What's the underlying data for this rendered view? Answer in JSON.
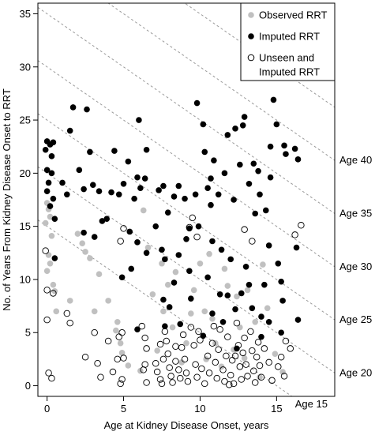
{
  "chart_data": {
    "type": "scatter",
    "xlabel": "Age at Kidney Disease Onset, years",
    "ylabel": "No. of Years From Kidney Disease Onset to RRT",
    "xlim": [
      -0.6,
      18.8
    ],
    "ylim": [
      -1.0,
      36.0
    ],
    "xticks": [
      0,
      5,
      10,
      15
    ],
    "yticks": [
      0,
      5,
      10,
      15,
      20,
      25,
      30,
      35
    ],
    "legend_position": "top-right",
    "series": [
      {
        "name": "Observed RRT",
        "marker": "filled-circle",
        "color": "#c0c0c0",
        "points": [
          [
            0.0,
            17.2
          ],
          [
            0.1,
            16.6
          ],
          [
            0.2,
            15.9
          ],
          [
            -0.1,
            15.3
          ],
          [
            0.3,
            14.1
          ],
          [
            0.1,
            12.3
          ],
          [
            0.2,
            11.5
          ],
          [
            0.0,
            10.8
          ],
          [
            0.4,
            9.5
          ],
          [
            0.5,
            8.9
          ],
          [
            2.0,
            14.3
          ],
          [
            2.3,
            13.4
          ],
          [
            2.5,
            12.6
          ],
          [
            2.8,
            12.0
          ],
          [
            1.5,
            8.0
          ],
          [
            0.6,
            7.0
          ],
          [
            3.1,
            7.0
          ],
          [
            4.0,
            8.0
          ],
          [
            4.6,
            6.0
          ],
          [
            4.8,
            4.0
          ],
          [
            4.9,
            3.1
          ],
          [
            5.3,
            1.9
          ],
          [
            6.3,
            16.5
          ],
          [
            6.6,
            13.0
          ],
          [
            7.5,
            11.5
          ],
          [
            7.9,
            9.5
          ],
          [
            7.6,
            7.0
          ],
          [
            8.2,
            5.5
          ],
          [
            9.1,
            4.0
          ],
          [
            8.8,
            2.2
          ],
          [
            9.6,
            9.0
          ],
          [
            10.0,
            11.5
          ],
          [
            10.3,
            7.0
          ],
          [
            10.8,
            6.3
          ],
          [
            11.0,
            4.0
          ],
          [
            10.4,
            2.5
          ],
          [
            11.6,
            11.0
          ],
          [
            11.8,
            9.4
          ],
          [
            12.4,
            8.4
          ],
          [
            12.6,
            5.5
          ],
          [
            13.6,
            6.0
          ],
          [
            14.4,
            7.3
          ],
          [
            15.4,
            1.3
          ],
          [
            14.9,
            3.0
          ],
          [
            10.6,
            12.4
          ],
          [
            6.1,
            1.4
          ],
          [
            8.4,
            10.7
          ],
          [
            12.9,
            2.6
          ],
          [
            14.1,
            11.4
          ],
          [
            9.4,
            6.8
          ],
          [
            12.2,
            3.4
          ],
          [
            11.4,
            1.8
          ],
          [
            13.1,
            9.0
          ],
          [
            3.4,
            10.5
          ],
          [
            4.5,
            5.2
          ],
          [
            7.2,
            3.3
          ],
          [
            13.9,
            0.8
          ],
          [
            6.9,
            8.6
          ]
        ]
      },
      {
        "name": "Imputed RRT",
        "marker": "filled-circle",
        "color": "#000000",
        "points": [
          [
            0.0,
            23.0
          ],
          [
            0.2,
            22.7
          ],
          [
            -0.1,
            22.2
          ],
          [
            0.3,
            21.6
          ],
          [
            0.0,
            20.3
          ],
          [
            0.3,
            20.0
          ],
          [
            0.1,
            19.1
          ],
          [
            0.0,
            18.3
          ],
          [
            0.4,
            17.6
          ],
          [
            0.2,
            16.9
          ],
          [
            0.5,
            15.7
          ],
          [
            1.0,
            19.1
          ],
          [
            1.3,
            18.0
          ],
          [
            1.5,
            24.0
          ],
          [
            1.7,
            26.2
          ],
          [
            2.1,
            20.3
          ],
          [
            2.4,
            18.5
          ],
          [
            2.6,
            26.0
          ],
          [
            2.8,
            22.0
          ],
          [
            3.0,
            18.9
          ],
          [
            2.4,
            14.4
          ],
          [
            3.1,
            14.0
          ],
          [
            3.4,
            18.3
          ],
          [
            3.6,
            15.5
          ],
          [
            3.9,
            15.7
          ],
          [
            4.2,
            18.2
          ],
          [
            4.4,
            22.1
          ],
          [
            4.7,
            18.0
          ],
          [
            5.0,
            19.0
          ],
          [
            5.3,
            21.1
          ],
          [
            5.4,
            14.5
          ],
          [
            5.7,
            17.6
          ],
          [
            5.9,
            19.6
          ],
          [
            6.0,
            25.0
          ],
          [
            6.1,
            18.6
          ],
          [
            6.4,
            19.5
          ],
          [
            6.5,
            22.2
          ],
          [
            7.3,
            18.4
          ],
          [
            7.6,
            18.8
          ],
          [
            7.9,
            16.3
          ],
          [
            8.3,
            17.8
          ],
          [
            8.6,
            18.8
          ],
          [
            7.1,
            15.0
          ],
          [
            7.5,
            12.8
          ],
          [
            7.6,
            8.1
          ],
          [
            8.6,
            12.3
          ],
          [
            8.3,
            9.7
          ],
          [
            9.1,
            13.8
          ],
          [
            9.3,
            14.8
          ],
          [
            9.0,
            17.6
          ],
          [
            9.7,
            18.0
          ],
          [
            9.8,
            26.6
          ],
          [
            10.2,
            24.6
          ],
          [
            10.3,
            22.0
          ],
          [
            10.7,
            19.5
          ],
          [
            10.9,
            21.2
          ],
          [
            10.5,
            18.6
          ],
          [
            10.7,
            17.0
          ],
          [
            10.8,
            13.6
          ],
          [
            9.9,
            15.0
          ],
          [
            11.2,
            18.0
          ],
          [
            11.4,
            12.8
          ],
          [
            11.6,
            20.0
          ],
          [
            11.8,
            23.6
          ],
          [
            12.2,
            17.5
          ],
          [
            12.3,
            24.2
          ],
          [
            12.8,
            24.5
          ],
          [
            12.9,
            25.3
          ],
          [
            12.6,
            20.8
          ],
          [
            13.2,
            19.0
          ],
          [
            13.5,
            20.9
          ],
          [
            13.8,
            20.2
          ],
          [
            13.6,
            16.2
          ],
          [
            13.9,
            18.0
          ],
          [
            14.3,
            16.5
          ],
          [
            14.6,
            22.5
          ],
          [
            14.8,
            26.9
          ],
          [
            15.0,
            24.6
          ],
          [
            14.6,
            19.6
          ],
          [
            15.5,
            22.6
          ],
          [
            15.6,
            21.8
          ],
          [
            16.2,
            22.3
          ],
          [
            16.4,
            21.3
          ],
          [
            14.5,
            13.2
          ],
          [
            15.1,
            11.5
          ],
          [
            16.3,
            13.0
          ],
          [
            15.3,
            9.8
          ],
          [
            16.4,
            6.2
          ],
          [
            15.4,
            8.0
          ],
          [
            14.2,
            9.5
          ],
          [
            12.0,
            11.9
          ],
          [
            11.8,
            8.5
          ],
          [
            10.5,
            10.2
          ],
          [
            9.3,
            10.8
          ],
          [
            7.7,
            11.9
          ],
          [
            6.5,
            12.5
          ],
          [
            5.5,
            11.0
          ],
          [
            4.9,
            10.2
          ],
          [
            0.5,
            12.0
          ],
          [
            0.4,
            22.9
          ],
          [
            5.9,
            13.5
          ],
          [
            8.0,
            7.4
          ],
          [
            9.4,
            8.2
          ],
          [
            10.8,
            6.8
          ],
          [
            11.3,
            8.6
          ],
          [
            12.7,
            8.7
          ],
          [
            13.2,
            9.5
          ],
          [
            13.0,
            11.2
          ],
          [
            14.0,
            6.5
          ],
          [
            13.4,
            7.3
          ],
          [
            12.4,
            3.5
          ],
          [
            14.0,
            4.6
          ],
          [
            8.7,
            5.8
          ],
          [
            7.7,
            5.6
          ],
          [
            10.2,
            4.7
          ],
          [
            11.5,
            6.0
          ],
          [
            12.3,
            7.2
          ],
          [
            14.5,
            6.0
          ],
          [
            15.3,
            5.0
          ],
          [
            5.9,
            5.3
          ]
        ]
      },
      {
        "name": "Unseen and Imputed RRT",
        "marker": "open-circle",
        "color": "#000000",
        "points": [
          [
            -0.1,
            12.7
          ],
          [
            0.0,
            9.0
          ],
          [
            0.4,
            8.7
          ],
          [
            0.0,
            6.2
          ],
          [
            0.1,
            1.2
          ],
          [
            0.3,
            0.7
          ],
          [
            1.3,
            6.8
          ],
          [
            1.5,
            5.9
          ],
          [
            2.5,
            2.7
          ],
          [
            3.1,
            5.0
          ],
          [
            3.3,
            2.1
          ],
          [
            3.5,
            0.8
          ],
          [
            4.0,
            4.2
          ],
          [
            4.3,
            1.3
          ],
          [
            4.6,
            2.5
          ],
          [
            4.7,
            4.6
          ],
          [
            4.9,
            5.0
          ],
          [
            5.0,
            2.6
          ],
          [
            4.9,
            0.6
          ],
          [
            4.8,
            0.2
          ],
          [
            4.8,
            13.6
          ],
          [
            5.0,
            14.8
          ],
          [
            6.2,
            5.6
          ],
          [
            6.4,
            4.5
          ],
          [
            6.5,
            3.5
          ],
          [
            6.4,
            2.0
          ],
          [
            6.3,
            1.5
          ],
          [
            6.5,
            0.3
          ],
          [
            7.1,
            2.1
          ],
          [
            7.2,
            1.3
          ],
          [
            7.4,
            0.6
          ],
          [
            7.5,
            0.2
          ],
          [
            7.6,
            2.5
          ],
          [
            7.7,
            5.1
          ],
          [
            7.8,
            4.2
          ],
          [
            7.9,
            3.0
          ],
          [
            8.0,
            1.7
          ],
          [
            8.1,
            0.9
          ],
          [
            8.2,
            0.3
          ],
          [
            8.4,
            2.3
          ],
          [
            8.6,
            1.5
          ],
          [
            8.7,
            0.7
          ],
          [
            8.8,
            3.6
          ],
          [
            8.9,
            4.8
          ],
          [
            9.0,
            2.5
          ],
          [
            9.1,
            1.2
          ],
          [
            9.2,
            0.4
          ],
          [
            9.3,
            14.9
          ],
          [
            9.5,
            15.8
          ],
          [
            9.8,
            14.0
          ],
          [
            9.4,
            5.5
          ],
          [
            9.6,
            3.8
          ],
          [
            9.7,
            2.0
          ],
          [
            9.8,
            0.8
          ],
          [
            10.0,
            4.3
          ],
          [
            10.1,
            1.6
          ],
          [
            10.3,
            0.2
          ],
          [
            10.5,
            2.8
          ],
          [
            10.6,
            1.2
          ],
          [
            10.8,
            4.0
          ],
          [
            11.0,
            2.2
          ],
          [
            11.1,
            0.7
          ],
          [
            11.2,
            3.4
          ],
          [
            11.3,
            5.3
          ],
          [
            11.5,
            1.5
          ],
          [
            11.6,
            0.4
          ],
          [
            11.7,
            2.8
          ],
          [
            11.8,
            4.6
          ],
          [
            12.0,
            1.0
          ],
          [
            12.1,
            2.4
          ],
          [
            12.2,
            0.2
          ],
          [
            12.4,
            5.9
          ],
          [
            12.5,
            3.8
          ],
          [
            12.6,
            1.8
          ],
          [
            12.7,
            0.6
          ],
          [
            12.8,
            3.1
          ],
          [
            12.9,
            4.5
          ],
          [
            13.0,
            2.0
          ],
          [
            13.1,
            0.9
          ],
          [
            13.3,
            5.1
          ],
          [
            13.4,
            3.3
          ],
          [
            13.5,
            1.4
          ],
          [
            13.6,
            0.3
          ],
          [
            13.7,
            2.7
          ],
          [
            13.8,
            4.1
          ],
          [
            13.9,
            1.9
          ],
          [
            14.0,
            0.8
          ],
          [
            14.2,
            3.5
          ],
          [
            14.5,
            2.2
          ],
          [
            14.7,
            0.5
          ],
          [
            15.1,
            1.8
          ],
          [
            15.3,
            2.7
          ],
          [
            15.6,
            4.2
          ],
          [
            15.5,
            0.9
          ],
          [
            15.9,
            3.5
          ],
          [
            16.2,
            14.2
          ],
          [
            16.6,
            15.1
          ],
          [
            13.4,
            13.6
          ],
          [
            12.9,
            14.7
          ],
          [
            8.4,
            3.7
          ],
          [
            10.9,
            5.6
          ],
          [
            11.9,
            0.1
          ],
          [
            9.9,
            5.1
          ],
          [
            7.4,
            3.9
          ],
          [
            12.3,
            2.8
          ]
        ]
      }
    ],
    "reference_lines": {
      "style": "dashed",
      "color": "#9a9a9a",
      "labels": [
        {
          "label": "Age 15",
          "age": 15
        },
        {
          "label": "Age 20",
          "age": 20
        },
        {
          "label": "Age 25",
          "age": 25
        },
        {
          "label": "Age 30",
          "age": 30
        },
        {
          "label": "Age 35",
          "age": 35
        },
        {
          "label": "Age 40",
          "age": 40
        },
        {
          "label": "",
          "age": 45
        },
        {
          "label": "",
          "age": 50
        }
      ]
    }
  }
}
